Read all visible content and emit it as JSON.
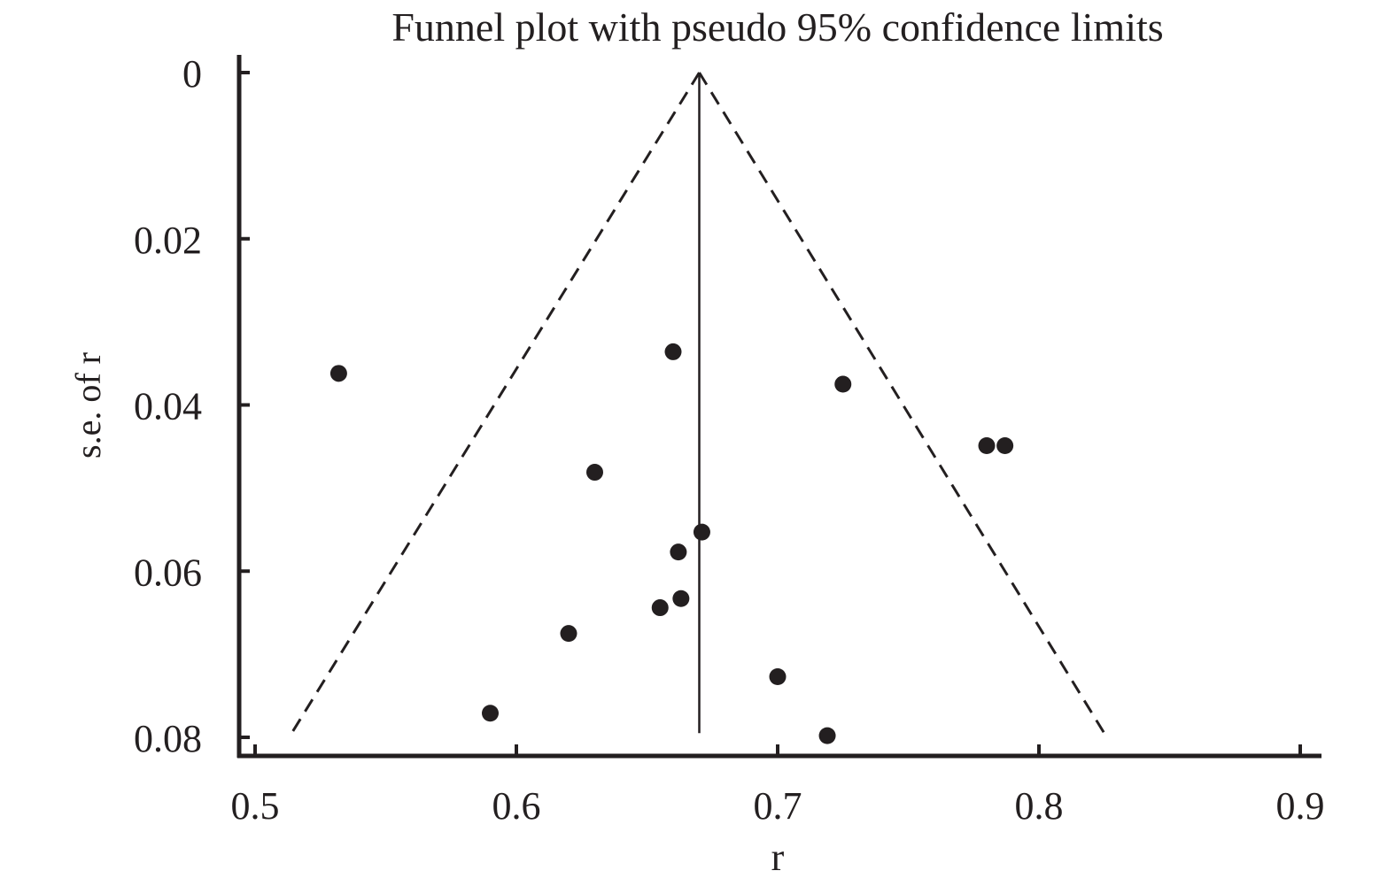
{
  "chart_data": {
    "type": "scatter",
    "title": "Funnel plot with pseudo 95% confidence limits",
    "xlabel": "r",
    "ylabel": "s.e. of r",
    "xlim": [
      0.5,
      0.9
    ],
    "ylim": [
      0,
      0.08
    ],
    "y_reversed": true,
    "x_ticks": [
      "0.5",
      "0.6",
      "0.7",
      "0.8",
      "0.9"
    ],
    "y_ticks": [
      "0",
      "0.02",
      "0.04",
      "0.06",
      "0.08"
    ],
    "pooled_estimate": 0.67,
    "funnel_limits": {
      "se_min": 0,
      "se_max": 0.0795,
      "lower_at_se_max": 0.514,
      "upper_at_se_max": 0.825
    },
    "points": [
      {
        "x": 0.532,
        "y": 0.0362
      },
      {
        "x": 0.66,
        "y": 0.0336
      },
      {
        "x": 0.725,
        "y": 0.0375
      },
      {
        "x": 0.78,
        "y": 0.0449
      },
      {
        "x": 0.787,
        "y": 0.0449
      },
      {
        "x": 0.63,
        "y": 0.0481
      },
      {
        "x": 0.671,
        "y": 0.0553
      },
      {
        "x": 0.662,
        "y": 0.0577
      },
      {
        "x": 0.663,
        "y": 0.0633
      },
      {
        "x": 0.655,
        "y": 0.0644
      },
      {
        "x": 0.62,
        "y": 0.0675
      },
      {
        "x": 0.7,
        "y": 0.0727
      },
      {
        "x": 0.59,
        "y": 0.0771
      },
      {
        "x": 0.719,
        "y": 0.0798
      }
    ],
    "marker_color": "#231f20",
    "line_color": "#231f20"
  }
}
